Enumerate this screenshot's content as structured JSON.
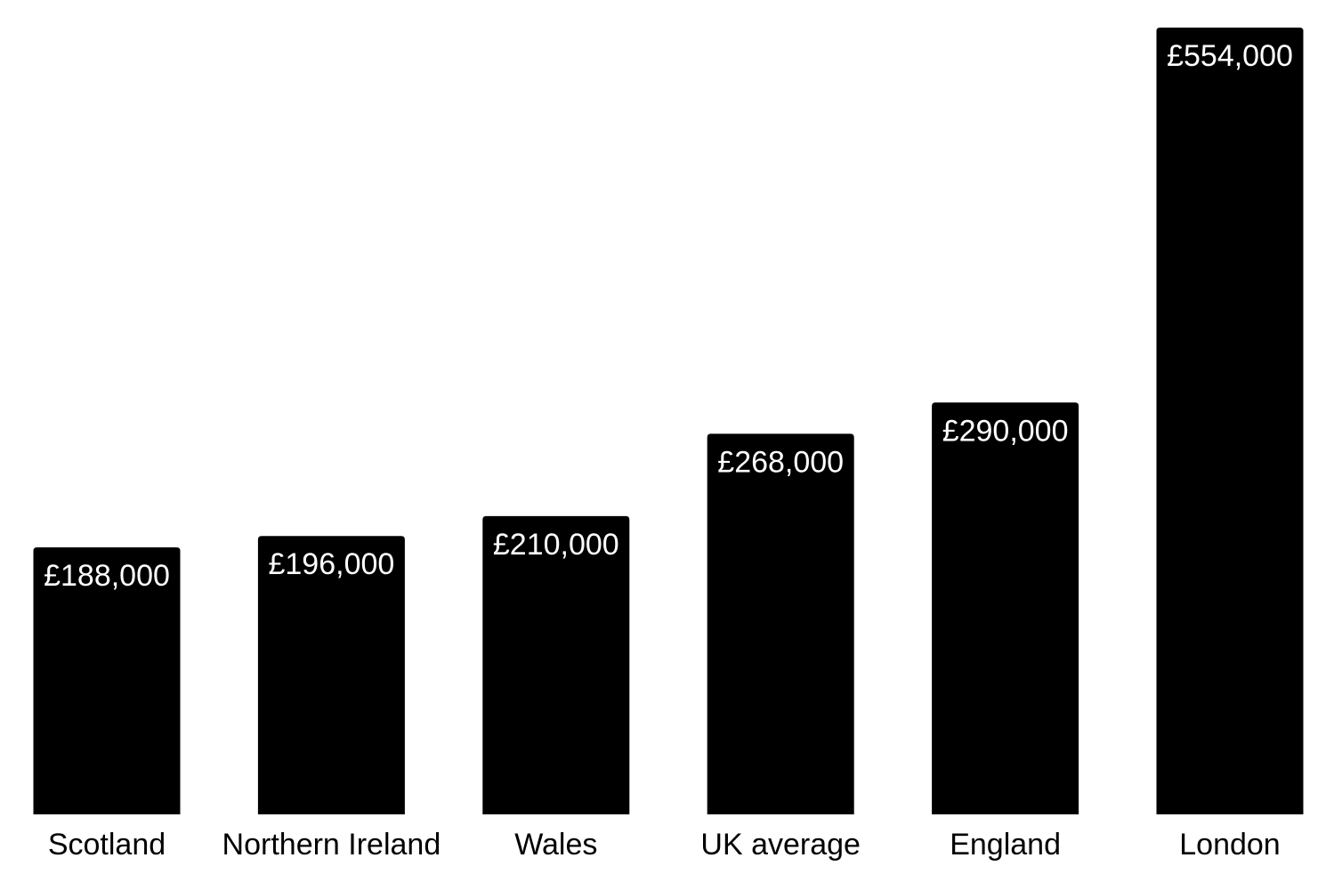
{
  "chart_data": {
    "type": "bar",
    "title": "",
    "xlabel": "",
    "ylabel": "",
    "categories": [
      "Scotland",
      "Northern Ireland",
      "Wales",
      "UK average",
      "England",
      "London"
    ],
    "values": [
      188000,
      196000,
      210000,
      268000,
      290000,
      554000
    ],
    "value_labels": [
      "£188,000",
      "£196,000",
      "£210,000",
      "£268,000",
      "£290,000",
      "£554,000"
    ],
    "ylim": [
      0,
      554000
    ],
    "grid": false,
    "legend": "none",
    "bar_color": "#000000",
    "value_label_color": "#ffffff",
    "category_label_color": "#000000"
  }
}
